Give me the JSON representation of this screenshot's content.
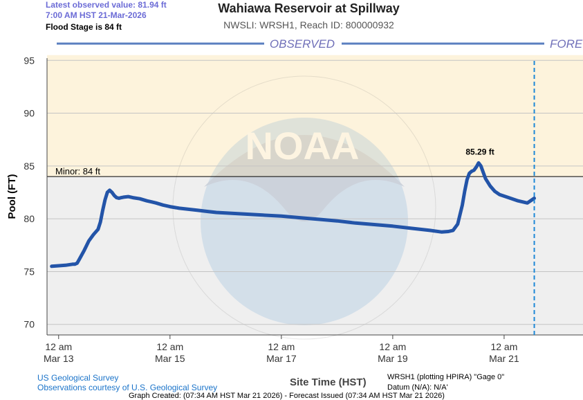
{
  "header": {
    "latest_value": "Latest observed value: 81.94 ft",
    "latest_time": "7:00 AM HST 21-Mar-2026",
    "flood_stage": "Flood Stage is 84 ft"
  },
  "footer": {
    "usgs": "US Geological Survey",
    "observations": "Observations courtesy of U.S. Geological Survey",
    "series_note": "WRSH1 (plotting HPIRA) \"Gage 0\"",
    "datum": "Datum (N/A): N/A'",
    "created": "Graph Created: (07:34 AM HST Mar 21 2026) - Forecast Issued (07:34 AM HST Mar 21 2026)"
  },
  "colors": {
    "series": "#2354a8",
    "band_upper": "#fdf3dc",
    "band_lower": "#efefef",
    "observed_bar": "#5a7fc0",
    "observed_text": "#6f6fb8",
    "forecast_line": "#1e88d6"
  },
  "chart_data": {
    "type": "line",
    "title": "Wahiawa Reservoir at Spillway",
    "subtitle": "NWSLI: WRSH1, Reach ID: 800000932",
    "xlabel": "Site Time (HST)",
    "ylabel": "Pool (FT)",
    "ylim": [
      69,
      96
    ],
    "y_ticks": [
      70,
      75,
      80,
      85,
      90,
      95
    ],
    "x_ticks": [
      {
        "line1": "12 am",
        "line2": "Mar 13",
        "t": 0
      },
      {
        "line1": "12 am",
        "line2": "Mar 15",
        "t": 48
      },
      {
        "line1": "12 am",
        "line2": "Mar 17",
        "t": 96
      },
      {
        "line1": "12 am",
        "line2": "Mar 19",
        "t": 144
      },
      {
        "line1": "12 am",
        "line2": "Mar 21",
        "t": 192
      }
    ],
    "grid": true,
    "flood_stage": {
      "label": "Minor: 84 ft",
      "value": 84
    },
    "peak_label": {
      "text": "85.29 ft",
      "t": 181,
      "value": 85.29
    },
    "sections": {
      "observed": "OBSERVED",
      "forecast": "FORE"
    },
    "now_t": 205,
    "series": [
      {
        "t": [
          -3,
          3,
          6,
          7,
          8,
          9,
          11,
          13,
          15,
          17,
          18,
          19,
          20,
          21,
          22,
          23,
          24,
          25,
          26,
          27,
          28,
          30,
          32,
          35,
          38,
          40,
          42,
          45,
          48,
          52,
          56,
          60,
          64,
          68,
          72,
          80,
          88,
          96,
          104,
          112,
          120,
          128,
          136,
          144,
          152,
          160,
          165,
          168,
          170,
          172,
          174,
          175,
          176,
          177,
          178,
          179,
          180,
          181,
          182,
          183,
          184,
          186,
          188,
          190,
          194,
          198,
          202,
          205
        ],
        "values": [
          75.5,
          75.6,
          75.7,
          75.7,
          75.8,
          76.2,
          77.0,
          77.9,
          78.5,
          79.0,
          79.7,
          80.8,
          81.8,
          82.5,
          82.7,
          82.5,
          82.2,
          82.0,
          81.95,
          82.0,
          82.05,
          82.1,
          82.0,
          81.9,
          81.7,
          81.6,
          81.5,
          81.3,
          81.15,
          81.0,
          80.9,
          80.8,
          80.7,
          80.6,
          80.55,
          80.45,
          80.35,
          80.25,
          80.1,
          79.95,
          79.8,
          79.6,
          79.45,
          79.3,
          79.1,
          78.9,
          78.75,
          78.8,
          78.9,
          79.5,
          81.3,
          82.6,
          83.7,
          84.3,
          84.5,
          84.6,
          84.9,
          85.29,
          85.0,
          84.4,
          83.8,
          83.1,
          82.6,
          82.3,
          82.0,
          81.7,
          81.5,
          81.94
        ]
      }
    ]
  }
}
